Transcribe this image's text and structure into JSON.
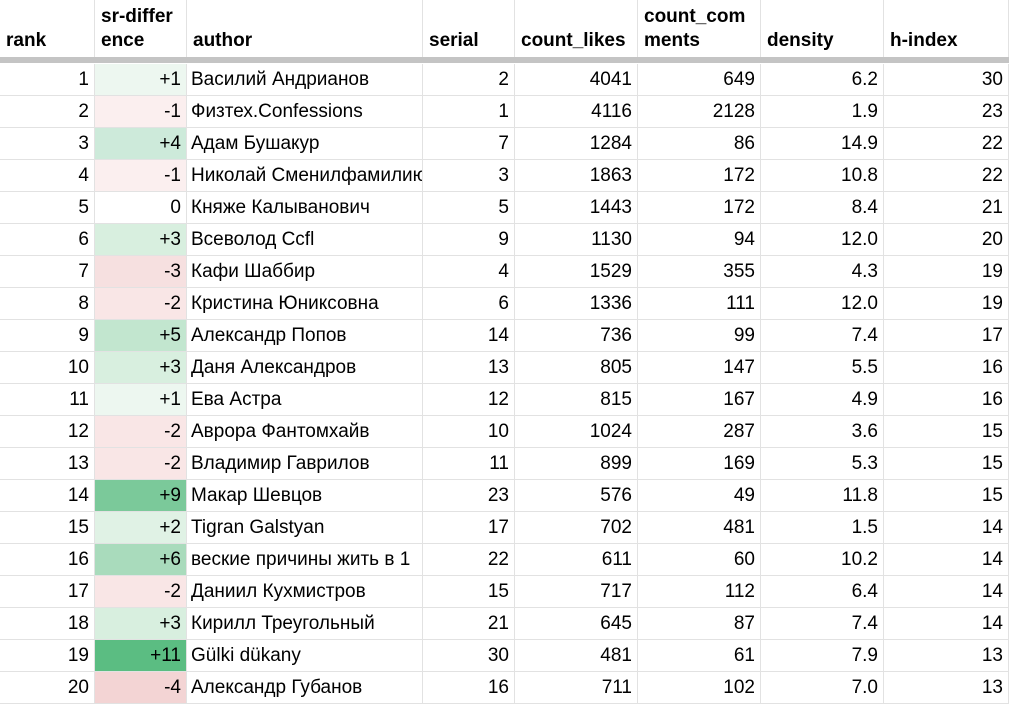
{
  "headers": {
    "rank": "rank",
    "sr_difference": "sr-difference",
    "author": "author",
    "serial": "serial",
    "count_likes": "count_likes",
    "count_comments": "count_comments",
    "density": "density",
    "h_index": "h-index"
  },
  "heat_colors": {
    "neg1": "#fbefef",
    "neg2": "#f9e6e6",
    "neg3": "#f6e0e0",
    "neg4": "#f3d4d4",
    "zero": "#ffffff",
    "pos1": "#edf7f0",
    "pos2": "#e0f2e5",
    "pos3": "#d8efdf",
    "pos4": "#cdeada",
    "pos5": "#c2e6cf",
    "pos6": "#a9dbbc",
    "pos9": "#7bc99a",
    "pos11": "#5bbd82"
  },
  "rows": [
    {
      "rank": "1",
      "sr_difference": "+1",
      "author": "Василий Андрианов",
      "serial": "2",
      "count_likes": "4041",
      "count_comments": "649",
      "density": "6.2",
      "h_index": "30"
    },
    {
      "rank": "2",
      "sr_difference": "-1",
      "author": "Физтех.Confessions",
      "serial": "1",
      "count_likes": "4116",
      "count_comments": "2128",
      "density": "1.9",
      "h_index": "23"
    },
    {
      "rank": "3",
      "sr_difference": "+4",
      "author": "Адам Бушакур",
      "serial": "7",
      "count_likes": "1284",
      "count_comments": "86",
      "density": "14.9",
      "h_index": "22"
    },
    {
      "rank": "4",
      "sr_difference": "-1",
      "author": "Николай Сменилфамилию",
      "serial": "3",
      "count_likes": "1863",
      "count_comments": "172",
      "density": "10.8",
      "h_index": "22"
    },
    {
      "rank": "5",
      "sr_difference": "0",
      "author": "Княже Калыванович",
      "serial": "5",
      "count_likes": "1443",
      "count_comments": "172",
      "density": "8.4",
      "h_index": "21"
    },
    {
      "rank": "6",
      "sr_difference": "+3",
      "author": "Всеволод Ccfl",
      "serial": "9",
      "count_likes": "1130",
      "count_comments": "94",
      "density": "12.0",
      "h_index": "20"
    },
    {
      "rank": "7",
      "sr_difference": "-3",
      "author": "Кафи Шаббир",
      "serial": "4",
      "count_likes": "1529",
      "count_comments": "355",
      "density": "4.3",
      "h_index": "19"
    },
    {
      "rank": "8",
      "sr_difference": "-2",
      "author": "Кристина Юниксовна",
      "serial": "6",
      "count_likes": "1336",
      "count_comments": "111",
      "density": "12.0",
      "h_index": "19"
    },
    {
      "rank": "9",
      "sr_difference": "+5",
      "author": "Александр Попов",
      "serial": "14",
      "count_likes": "736",
      "count_comments": "99",
      "density": "7.4",
      "h_index": "17"
    },
    {
      "rank": "10",
      "sr_difference": "+3",
      "author": "Даня Александров",
      "serial": "13",
      "count_likes": "805",
      "count_comments": "147",
      "density": "5.5",
      "h_index": "16"
    },
    {
      "rank": "11",
      "sr_difference": "+1",
      "author": "Ева Астра",
      "serial": "12",
      "count_likes": "815",
      "count_comments": "167",
      "density": "4.9",
      "h_index": "16"
    },
    {
      "rank": "12",
      "sr_difference": "-2",
      "author": "Аврора Фантомхайв",
      "serial": "10",
      "count_likes": "1024",
      "count_comments": "287",
      "density": "3.6",
      "h_index": "15"
    },
    {
      "rank": "13",
      "sr_difference": "-2",
      "author": "Владимир Гаврилов",
      "serial": "11",
      "count_likes": "899",
      "count_comments": "169",
      "density": "5.3",
      "h_index": "15"
    },
    {
      "rank": "14",
      "sr_difference": "+9",
      "author": "Макар Шевцов",
      "serial": "23",
      "count_likes": "576",
      "count_comments": "49",
      "density": "11.8",
      "h_index": "15"
    },
    {
      "rank": "15",
      "sr_difference": "+2",
      "author": "Tigran Galstyan",
      "serial": "17",
      "count_likes": "702",
      "count_comments": "481",
      "density": "1.5",
      "h_index": "14"
    },
    {
      "rank": "16",
      "sr_difference": "+6",
      "author": "веские причины жить в 1",
      "serial": "22",
      "count_likes": "611",
      "count_comments": "60",
      "density": "10.2",
      "h_index": "14"
    },
    {
      "rank": "17",
      "sr_difference": "-2",
      "author": "Даниил Кухмистров",
      "serial": "15",
      "count_likes": "717",
      "count_comments": "112",
      "density": "6.4",
      "h_index": "14"
    },
    {
      "rank": "18",
      "sr_difference": "+3",
      "author": "Кирилл Треугольный",
      "serial": "21",
      "count_likes": "645",
      "count_comments": "87",
      "density": "7.4",
      "h_index": "14"
    },
    {
      "rank": "19",
      "sr_difference": "+11",
      "author": "Gülki dükany",
      "serial": "30",
      "count_likes": "481",
      "count_comments": "61",
      "density": "7.9",
      "h_index": "13"
    },
    {
      "rank": "20",
      "sr_difference": "-4",
      "author": "Александр Губанов",
      "serial": "16",
      "count_likes": "711",
      "count_comments": "102",
      "density": "7.0",
      "h_index": "13"
    }
  ]
}
